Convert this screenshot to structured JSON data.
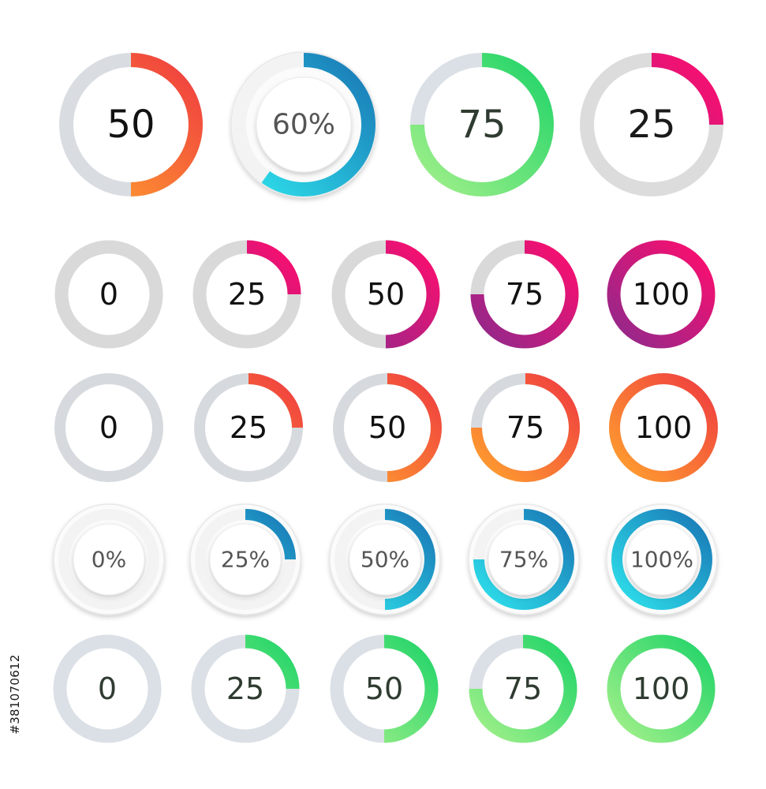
{
  "image_id_text": "#381070612",
  "rows": [
    {
      "name": "top",
      "style": "mixed",
      "items": [
        {
          "label": "50",
          "value": 50,
          "style": "gradient-ring",
          "track": "#d9dde2",
          "colors": [
            "#ffa22e",
            "#ef3b40"
          ],
          "text_color": "#111111"
        },
        {
          "label": "60%",
          "value": 60,
          "style": "embossed",
          "track": "#f3f3f3",
          "colors": [
            "#2ee2ec",
            "#1977b5"
          ],
          "text_color": "#555555"
        },
        {
          "label": "75",
          "value": 75,
          "style": "gradient-ring",
          "track": "#dbe0e6",
          "colors": [
            "#a3f08a",
            "#20d468"
          ],
          "text_color": "#2f3b30"
        },
        {
          "label": "25",
          "value": 25,
          "style": "gradient-ring",
          "track": "#dcdcdc",
          "colors": [
            "#9a2c8c",
            "#ff0d6e"
          ],
          "text_color": "#1a1a1a"
        }
      ]
    },
    {
      "name": "magenta",
      "style": "gradient-ring",
      "track": "#d9d9d9",
      "colors": [
        "#8e2a8c",
        "#ff0d6e"
      ],
      "text_color": "#111111",
      "items": [
        {
          "label": "0",
          "value": 0
        },
        {
          "label": "25",
          "value": 25
        },
        {
          "label": "50",
          "value": 50
        },
        {
          "label": "75",
          "value": 75
        },
        {
          "label": "100",
          "value": 100
        }
      ]
    },
    {
      "name": "orange",
      "style": "gradient-ring",
      "track": "#d6dade",
      "colors": [
        "#ffa22e",
        "#ef3b40"
      ],
      "text_color": "#111111",
      "items": [
        {
          "label": "0",
          "value": 0
        },
        {
          "label": "25",
          "value": 25
        },
        {
          "label": "50",
          "value": 50
        },
        {
          "label": "75",
          "value": 75
        },
        {
          "label": "100",
          "value": 100
        }
      ]
    },
    {
      "name": "blue",
      "style": "embossed",
      "track": "#f3f3f3",
      "colors": [
        "#2ee2ec",
        "#1977b5"
      ],
      "text_color": "#555555",
      "items": [
        {
          "label": "0%",
          "value": 0
        },
        {
          "label": "25%",
          "value": 25
        },
        {
          "label": "50%",
          "value": 50
        },
        {
          "label": "75%",
          "value": 75
        },
        {
          "label": "100%",
          "value": 100
        }
      ]
    },
    {
      "name": "green",
      "style": "gradient-ring",
      "track": "#dbe0e6",
      "colors": [
        "#a3f08a",
        "#20d468"
      ],
      "text_color": "#2f3b30",
      "items": [
        {
          "label": "0",
          "value": 0
        },
        {
          "label": "25",
          "value": 25
        },
        {
          "label": "50",
          "value": 50
        },
        {
          "label": "75",
          "value": 75
        },
        {
          "label": "100",
          "value": 100
        }
      ]
    }
  ]
}
